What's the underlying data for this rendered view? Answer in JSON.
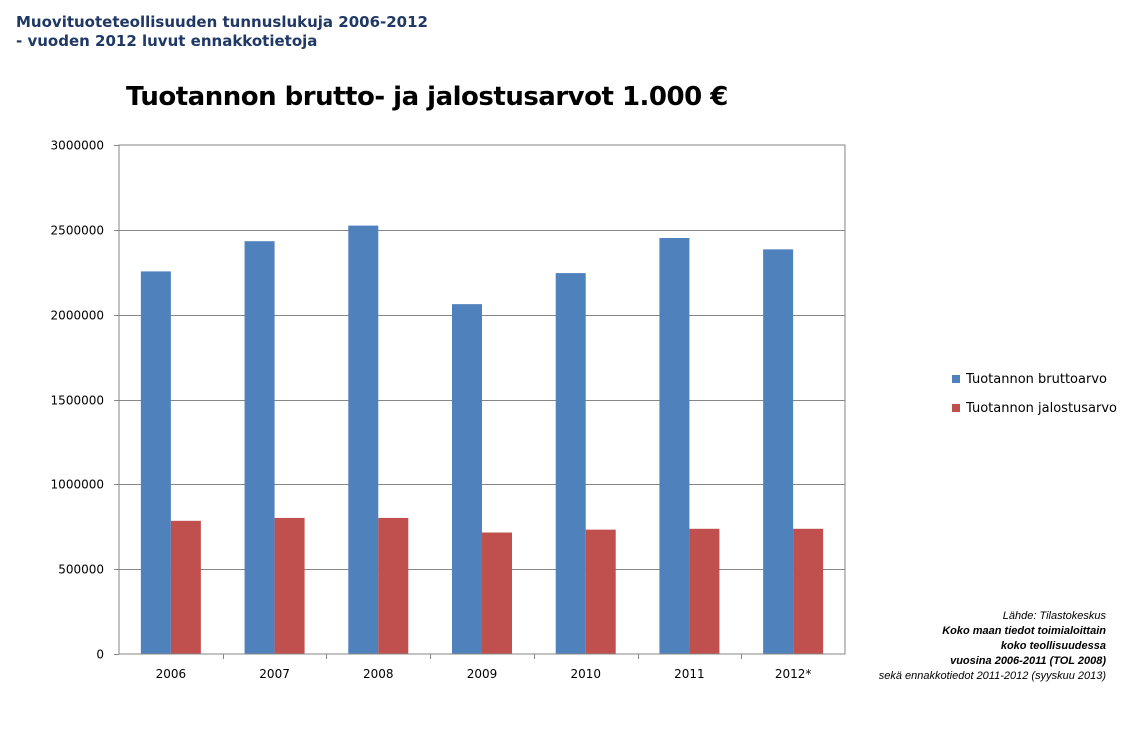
{
  "header": {
    "line1": "Muovituoteteollisuuden tunnuslukuja 2006-2012",
    "line2": "- vuoden 2012 luvut ennakkotietoja"
  },
  "chart_data": {
    "type": "bar",
    "title": "Tuotannon brutto- ja jalostusarvot 1.000 €",
    "xlabel": "",
    "ylabel": "",
    "categories": [
      "2006",
      "2007",
      "2008",
      "2009",
      "2010",
      "2011",
      "2012*"
    ],
    "series": [
      {
        "name": "Tuotannon bruttoarvo",
        "color": "#4f81bd",
        "values": [
          2255000,
          2433000,
          2525000,
          2062000,
          2245000,
          2452000,
          2385000
        ]
      },
      {
        "name": "Tuotannon jalostusarvo",
        "color": "#c0504d",
        "values": [
          785000,
          802000,
          802000,
          716000,
          733000,
          738000,
          738000
        ]
      }
    ],
    "ylim": [
      0,
      3000000
    ],
    "yticks": [
      "0",
      "500000",
      "1000000",
      "1500000",
      "2000000",
      "2500000",
      "3000000"
    ],
    "grid": true,
    "legend_position": "right"
  },
  "source": {
    "line1": "Lähde:  Tilastokeskus",
    "line2": "Koko maan tiedot toimialoittain",
    "line3": "koko teollisuudessa",
    "line4": "vuosina 2006-2011  (TOL 2008)",
    "line5": "sekä ennakkotiedot 2011-2012  (syyskuu 2013)"
  }
}
